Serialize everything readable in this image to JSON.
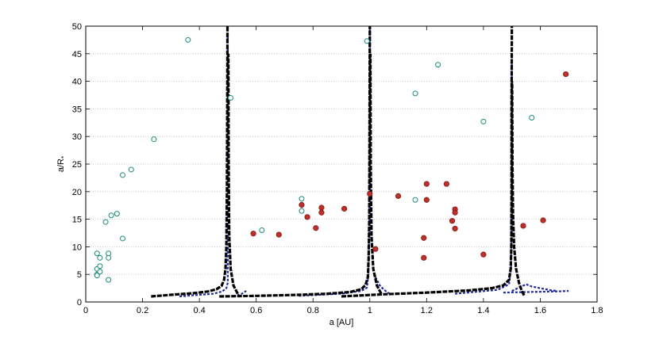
{
  "chart_data": {
    "type": "scatter",
    "xlabel": "a [AU]",
    "ylabel": "a/R",
    "ylabel_subscript": "*",
    "xlim": [
      0,
      1.8
    ],
    "ylim": [
      0,
      50
    ],
    "x_ticks": [
      0,
      0.2,
      0.4,
      0.6,
      0.8,
      1,
      1.2,
      1.4,
      1.6,
      1.8
    ],
    "x_tick_labels": [
      "0",
      "0.2",
      "0.4",
      "0.6",
      "0.8",
      "1",
      "1.2",
      "1.4",
      "1.6",
      "1.8"
    ],
    "y_ticks": [
      0,
      5,
      10,
      15,
      20,
      25,
      30,
      35,
      40,
      45,
      50
    ],
    "y_tick_labels": [
      "0",
      "5",
      "10",
      "15",
      "20",
      "25",
      "30",
      "35",
      "40",
      "45",
      "50"
    ],
    "grid": "horizontal dotted",
    "colors": {
      "open_marker_edge": "#1a8a7a",
      "open_marker_fill": "#ffffff",
      "filled_marker": "#c0302a",
      "filled_marker_edge": "#7a1a14",
      "black_curve": "#000000",
      "blue_curve": "#1f2a9a"
    },
    "series": [
      {
        "marker": "open-circle",
        "points": [
          [
            0.04,
            8.8
          ],
          [
            0.04,
            6.0
          ],
          [
            0.04,
            5.0
          ],
          [
            0.05,
            8.0
          ],
          [
            0.05,
            6.5
          ],
          [
            0.04,
            4.8
          ],
          [
            0.05,
            5.5
          ],
          [
            0.08,
            8.8
          ],
          [
            0.08,
            8.0
          ],
          [
            0.08,
            4.0
          ],
          [
            0.07,
            14.5
          ],
          [
            0.09,
            15.7
          ],
          [
            0.11,
            16.0
          ],
          [
            0.13,
            11.5
          ],
          [
            0.13,
            23.0
          ],
          [
            0.16,
            24.0
          ],
          [
            0.24,
            29.5
          ],
          [
            0.36,
            47.5
          ],
          [
            0.51,
            37.0
          ],
          [
            0.62,
            13.0
          ],
          [
            0.76,
            18.7
          ],
          [
            0.76,
            16.5
          ],
          [
            0.99,
            47.3
          ],
          [
            1.16,
            37.8
          ],
          [
            1.16,
            18.5
          ],
          [
            1.24,
            43.0
          ],
          [
            1.4,
            32.7
          ],
          [
            1.57,
            33.4
          ]
        ]
      },
      {
        "marker": "filled-circle",
        "points": [
          [
            0.59,
            12.4
          ],
          [
            0.68,
            12.2
          ],
          [
            0.76,
            17.6
          ],
          [
            0.78,
            15.4
          ],
          [
            0.81,
            13.4
          ],
          [
            0.83,
            17.1
          ],
          [
            0.83,
            16.2
          ],
          [
            0.91,
            16.9
          ],
          [
            1.0,
            19.6
          ],
          [
            1.02,
            9.6
          ],
          [
            1.1,
            19.2
          ],
          [
            1.19,
            11.6
          ],
          [
            1.19,
            8.0
          ],
          [
            1.2,
            21.4
          ],
          [
            1.2,
            18.5
          ],
          [
            1.27,
            21.4
          ],
          [
            1.29,
            14.7
          ],
          [
            1.3,
            16.8
          ],
          [
            1.3,
            16.2
          ],
          [
            1.3,
            13.3
          ],
          [
            1.4,
            8.6
          ],
          [
            1.54,
            13.8
          ],
          [
            1.61,
            14.8
          ],
          [
            1.69,
            41.3
          ]
        ]
      },
      {
        "marker": "black-dashed-curve",
        "curves": [
          [
            [
              0.23,
              1.0
            ],
            [
              0.3,
              1.3
            ],
            [
              0.38,
              1.6
            ],
            [
              0.43,
              1.9
            ],
            [
              0.46,
              2.3
            ],
            [
              0.478,
              2.9
            ],
            [
              0.487,
              4.0
            ],
            [
              0.492,
              6.0
            ],
            [
              0.495,
              10.0
            ],
            [
              0.497,
              20.0
            ],
            [
              0.498,
              35.0
            ],
            [
              0.499,
              50.0
            ]
          ],
          [
            [
              0.47,
              1.0
            ],
            [
              0.6,
              1.1
            ],
            [
              0.75,
              1.3
            ],
            [
              0.85,
              1.5
            ],
            [
              0.93,
              1.8
            ],
            [
              0.97,
              2.3
            ],
            [
              0.985,
              3.1
            ],
            [
              0.993,
              4.5
            ],
            [
              0.996,
              8.0
            ],
            [
              0.998,
              15.0
            ],
            [
              0.999,
              30.0
            ],
            [
              1.0,
              50.0
            ]
          ],
          [
            [
              0.9,
              1.0
            ],
            [
              1.05,
              1.4
            ],
            [
              1.2,
              1.7
            ],
            [
              1.35,
              2.1
            ],
            [
              1.43,
              2.5
            ],
            [
              1.47,
              3.0
            ],
            [
              1.49,
              4.0
            ],
            [
              1.496,
              6.0
            ],
            [
              1.498,
              10.0
            ],
            [
              1.499,
              20.0
            ],
            [
              1.499,
              35.0
            ],
            [
              1.5,
              50.0
            ]
          ],
          [
            [
              1.543,
              1.2
            ],
            [
              1.535,
              2.0
            ],
            [
              1.525,
              3.5
            ],
            [
              1.515,
              6.0
            ],
            [
              1.508,
              10.0
            ],
            [
              1.504,
              16.0
            ],
            [
              1.502,
              25.0
            ],
            [
              1.501,
              40.0
            ]
          ],
          [
            [
              1.04,
              1.5
            ],
            [
              1.025,
              3.0
            ],
            [
              1.012,
              6.0
            ],
            [
              1.006,
              12.0
            ],
            [
              1.003,
              25.0
            ],
            [
              1.002,
              45.0
            ]
          ],
          [
            [
              0.535,
              1.5
            ],
            [
              0.52,
              3.0
            ],
            [
              0.51,
              6.0
            ],
            [
              0.505,
              12.0
            ],
            [
              0.503,
              25.0
            ],
            [
              0.502,
              45.0
            ]
          ]
        ]
      },
      {
        "marker": "blue-dashed-curve",
        "curves": [
          [
            [
              0.33,
              1.0
            ],
            [
              0.4,
              1.3
            ],
            [
              0.45,
              1.5
            ],
            [
              0.48,
              1.9
            ],
            [
              0.495,
              2.5
            ],
            [
              0.5,
              3.5
            ],
            [
              0.5,
              50.0
            ]
          ],
          [
            [
              0.52,
              1.0
            ],
            [
              0.55,
              1.5
            ],
            [
              0.565,
              2.0
            ]
          ],
          [
            [
              0.75,
              1.1
            ],
            [
              0.9,
              1.5
            ],
            [
              0.97,
              2.0
            ],
            [
              0.99,
              2.6
            ],
            [
              0.995,
              5.0
            ],
            [
              0.998,
              15.0
            ],
            [
              1.0,
              50.0
            ]
          ],
          [
            [
              1.07,
              1.5
            ],
            [
              1.05,
              2.2
            ],
            [
              1.035,
              3.0
            ],
            [
              1.02,
              4.5
            ]
          ],
          [
            [
              1.3,
              1.5
            ],
            [
              1.45,
              2.2
            ],
            [
              1.49,
              3.2
            ],
            [
              1.497,
              6.0
            ],
            [
              1.499,
              20.0
            ],
            [
              1.5,
              45.0
            ]
          ],
          [
            [
              1.5,
              2.0
            ],
            [
              1.55,
              3.2
            ],
            [
              1.57,
              2.8
            ],
            [
              1.61,
              2.4
            ],
            [
              1.64,
              2.1
            ],
            [
              1.66,
              2.0
            ]
          ],
          [
            [
              1.47,
              1.7
            ],
            [
              1.55,
              1.8
            ],
            [
              1.65,
              1.9
            ],
            [
              1.7,
              2.0
            ]
          ]
        ]
      }
    ]
  }
}
